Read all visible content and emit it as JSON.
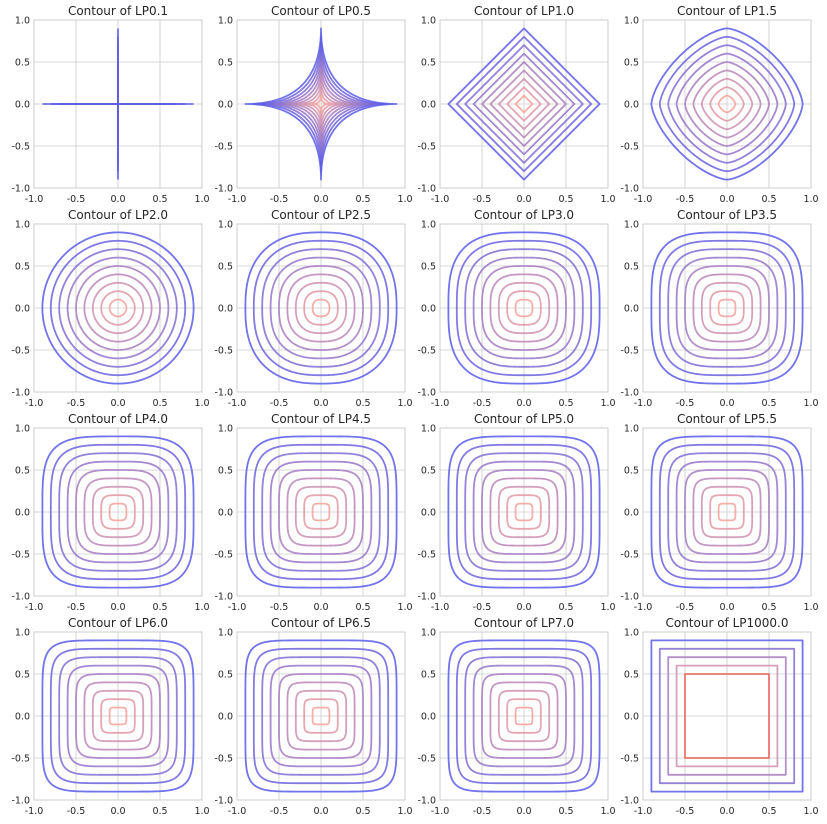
{
  "chart_data": {
    "type": "contour-grid",
    "x_ticks": [
      "-1.0",
      "-0.5",
      "0.0",
      "0.5",
      "1.0"
    ],
    "y_ticks": [
      "1.0",
      "0.5",
      "0.0",
      "-0.5",
      "-1.0"
    ],
    "xlim": [
      -1.0,
      1.0
    ],
    "ylim": [
      -1.0,
      1.0
    ],
    "grid": true,
    "contour_levels": [
      0.1,
      0.2,
      0.3,
      0.4,
      0.5,
      0.6,
      0.7,
      0.8,
      0.9
    ],
    "colors": {
      "low": "#f4a09a",
      "high": "#5a5ae8",
      "lp1000_inner": "#e86a5e"
    },
    "panels": [
      {
        "title": "Contour of LP0.1",
        "p": 0.1
      },
      {
        "title": "Contour of LP0.5",
        "p": 0.5
      },
      {
        "title": "Contour of LP1.0",
        "p": 1.0
      },
      {
        "title": "Contour of LP1.5",
        "p": 1.5
      },
      {
        "title": "Contour of LP2.0",
        "p": 2.0
      },
      {
        "title": "Contour of LP2.5",
        "p": 2.5
      },
      {
        "title": "Contour of LP3.0",
        "p": 3.0
      },
      {
        "title": "Contour of LP3.5",
        "p": 3.5
      },
      {
        "title": "Contour of LP4.0",
        "p": 4.0
      },
      {
        "title": "Contour of LP4.5",
        "p": 4.5
      },
      {
        "title": "Contour of LP5.0",
        "p": 5.0
      },
      {
        "title": "Contour of LP5.5",
        "p": 5.5
      },
      {
        "title": "Contour of LP6.0",
        "p": 6.0
      },
      {
        "title": "Contour of LP6.5",
        "p": 6.5
      },
      {
        "title": "Contour of LP7.0",
        "p": 7.0
      },
      {
        "title": "Contour of LP1000.0",
        "p": 1000.0
      }
    ]
  }
}
